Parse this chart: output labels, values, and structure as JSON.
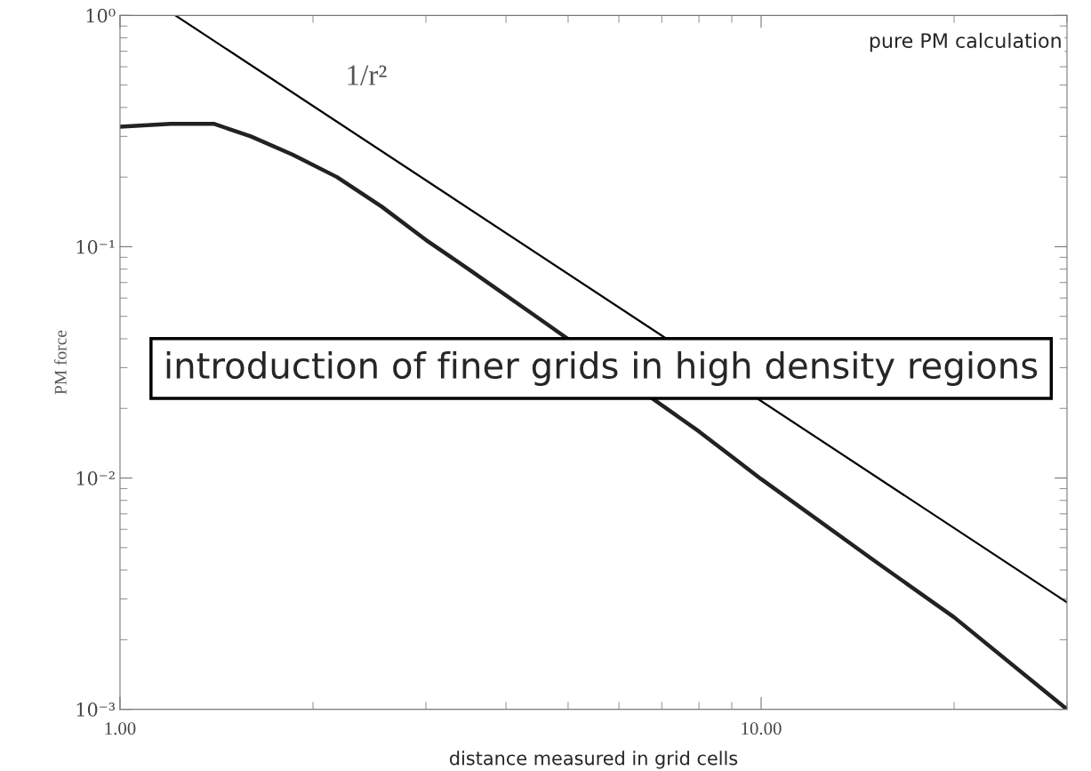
{
  "chart_data": {
    "type": "line",
    "xlabel": "distance measured in grid cells",
    "ylabel": "PM force",
    "log": "xy",
    "grid": false,
    "marker": "none",
    "line_style": "solid",
    "xlim": [
      1,
      30
    ],
    "ylim": [
      0.001,
      1
    ],
    "xticks": [
      {
        "value": 1,
        "label": "1.00"
      },
      {
        "value": 10,
        "label": "10.00"
      }
    ],
    "yticks": [
      {
        "value": 0.001,
        "label": "10⁻³"
      },
      {
        "value": 0.01,
        "label": "10⁻²"
      },
      {
        "value": 0.1,
        "label": "10⁻¹"
      },
      {
        "value": 1,
        "label": "10⁰"
      }
    ],
    "series": [
      {
        "color": "#000000",
        "x": [
          1.22,
          30
        ],
        "values": [
          1,
          0.0029
        ]
      },
      {
        "color": "#222222",
        "x": [
          1.0,
          1.2,
          1.4,
          1.6,
          1.86,
          2.18,
          2.56,
          3.0,
          3.52,
          4.5,
          8,
          10,
          15,
          20,
          30
        ],
        "values": [
          0.33,
          0.34,
          0.34,
          0.3,
          0.25,
          0.2,
          0.149,
          0.107,
          0.079,
          0.049,
          0.0159,
          0.0099,
          0.0044,
          0.0025,
          0.001
        ]
      }
    ],
    "annotations": [
      "1/r²",
      "pure PM calculation",
      "introduction of finer grids in high density regions"
    ]
  }
}
